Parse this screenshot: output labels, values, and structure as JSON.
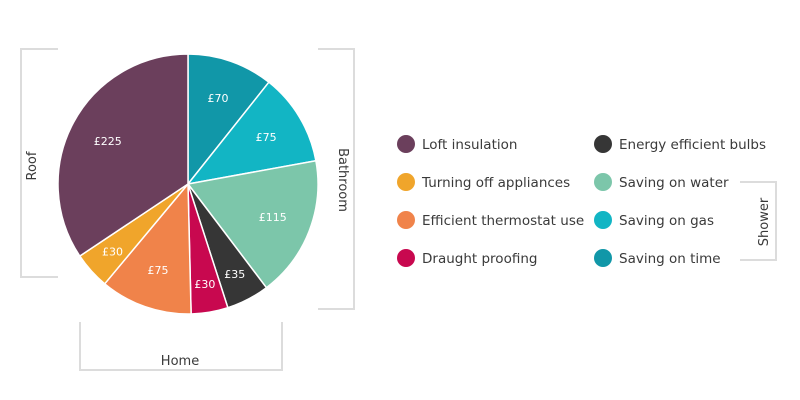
{
  "chart_data": {
    "type": "pie",
    "slices": [
      {
        "label": "Saving on time",
        "value": 70,
        "value_label": "£70",
        "color": "#1197a8"
      },
      {
        "label": "Saving on gas",
        "value": 75,
        "value_label": "£75",
        "color": "#12b5c4"
      },
      {
        "label": "Saving on water",
        "value": 115,
        "value_label": "£115",
        "color": "#7cc6aa"
      },
      {
        "label": "Energy efficient bulbs",
        "value": 35,
        "value_label": "£35",
        "color": "#363636"
      },
      {
        "label": "Draught proofing",
        "value": 30,
        "value_label": "£30",
        "color": "#c8084f"
      },
      {
        "label": "Efficient thermostat use",
        "value": 75,
        "value_label": "£75",
        "color": "#f0834a"
      },
      {
        "label": "Turning off appliances",
        "value": 30,
        "value_label": "£30",
        "color": "#f0a52b"
      },
      {
        "label": "Loft insulation",
        "value": 225,
        "value_label": "£225",
        "color": "#6b3f5c"
      }
    ],
    "legend": {
      "columns": [
        [
          "Loft insulation",
          "Turning off appliances",
          "Efficient thermostat use",
          "Draught proofing"
        ],
        [
          "Energy efficient bulbs",
          "Saving on water",
          "Saving on gas",
          "Saving on time"
        ]
      ]
    },
    "groups": [
      {
        "name": "Roof",
        "members": [
          "Loft insulation"
        ]
      },
      {
        "name": "Bathroom",
        "members": [
          "Saving on time",
          "Saving on gas",
          "Saving on water"
        ]
      },
      {
        "name": "Home",
        "members": [
          "Efficient thermostat use",
          "Draught proofing"
        ]
      },
      {
        "name": "Shower",
        "members": [
          "Saving on water",
          "Saving on gas",
          "Saving on time"
        ]
      }
    ]
  }
}
